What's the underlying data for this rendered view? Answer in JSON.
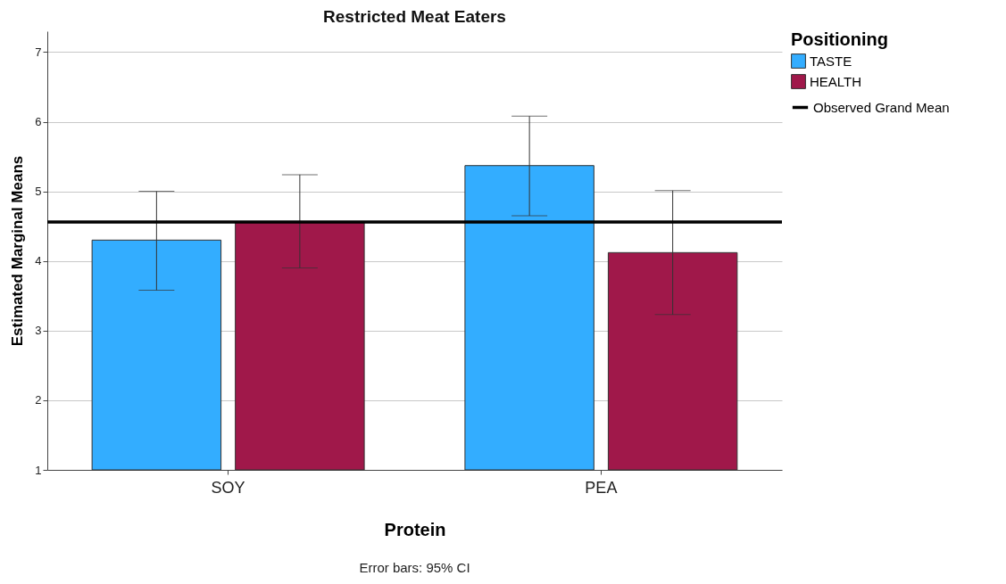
{
  "chart_data": {
    "type": "bar",
    "title": "Restricted Meat Eaters",
    "xlabel": "Protein",
    "ylabel": "Estimated Marginal Means",
    "legend_title": "Positioning",
    "categories": [
      "SOY",
      "PEA"
    ],
    "series": [
      {
        "name": "TASTE",
        "color": "#33adff",
        "values": [
          4.3,
          5.37
        ],
        "errors": [
          [
            3.58,
            5.0
          ],
          [
            4.65,
            6.08
          ]
        ]
      },
      {
        "name": "HEALTH",
        "color": "#a0184a",
        "values": [
          4.56,
          4.12
        ],
        "errors": [
          [
            3.9,
            5.24
          ],
          [
            3.23,
            5.01
          ]
        ]
      }
    ],
    "ylim": [
      1,
      7.3
    ],
    "yticks": [
      1,
      2,
      3,
      4,
      5,
      6,
      7
    ],
    "grid": "y",
    "legend": "top right",
    "ref_lines": [
      {
        "axis": "y",
        "value": 4.56,
        "label": "Observed Grand Mean",
        "color": "#000000"
      }
    ],
    "annotations": [
      "Error bars: 95% CI"
    ]
  }
}
